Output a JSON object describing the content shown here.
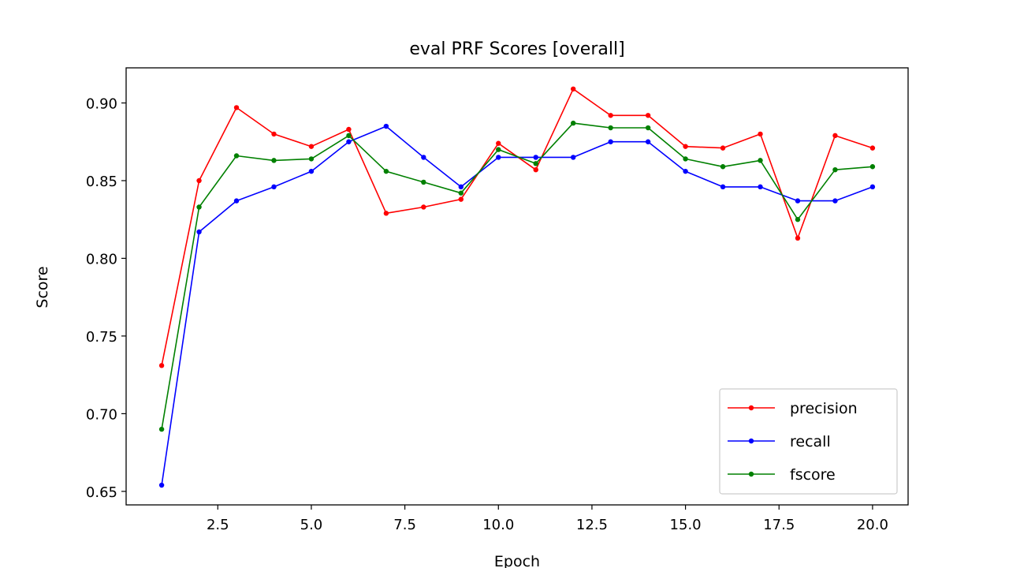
{
  "chart_data": {
    "type": "line",
    "title": "eval PRF Scores [overall]",
    "xlabel": "Epoch",
    "ylabel": "Score",
    "xlim": [
      0.05,
      20.95
    ],
    "ylim": [
      0.6413,
      0.9226
    ],
    "xticks": [
      2.5,
      5.0,
      7.5,
      10.0,
      12.5,
      15.0,
      17.5,
      20.0
    ],
    "xtick_labels": [
      "2.5",
      "5.0",
      "7.5",
      "10.0",
      "12.5",
      "15.0",
      "17.5",
      "20.0"
    ],
    "yticks": [
      0.65,
      0.7,
      0.75,
      0.8,
      0.85,
      0.9
    ],
    "ytick_labels": [
      "0.65",
      "0.70",
      "0.75",
      "0.80",
      "0.85",
      "0.90"
    ],
    "grid": false,
    "legend_position": "lower-right",
    "x": [
      1,
      2,
      3,
      4,
      5,
      6,
      7,
      8,
      9,
      10,
      11,
      12,
      13,
      14,
      15,
      16,
      17,
      18,
      19,
      20
    ],
    "series": [
      {
        "name": "precision",
        "color": "#ff0000",
        "values": [
          0.731,
          0.85,
          0.897,
          0.88,
          0.872,
          0.883,
          0.829,
          0.833,
          0.838,
          0.874,
          0.857,
          0.909,
          0.892,
          0.892,
          0.872,
          0.871,
          0.88,
          0.813,
          0.879,
          0.871
        ]
      },
      {
        "name": "recall",
        "color": "#0000ff",
        "values": [
          0.654,
          0.817,
          0.837,
          0.846,
          0.856,
          0.875,
          0.885,
          0.865,
          0.846,
          0.865,
          0.865,
          0.865,
          0.875,
          0.875,
          0.856,
          0.846,
          0.846,
          0.837,
          0.837,
          0.846
        ]
      },
      {
        "name": "fscore",
        "color": "#008000",
        "values": [
          0.69,
          0.833,
          0.866,
          0.863,
          0.864,
          0.879,
          0.856,
          0.849,
          0.842,
          0.87,
          0.861,
          0.887,
          0.884,
          0.884,
          0.864,
          0.859,
          0.863,
          0.825,
          0.857,
          0.859
        ]
      }
    ]
  }
}
